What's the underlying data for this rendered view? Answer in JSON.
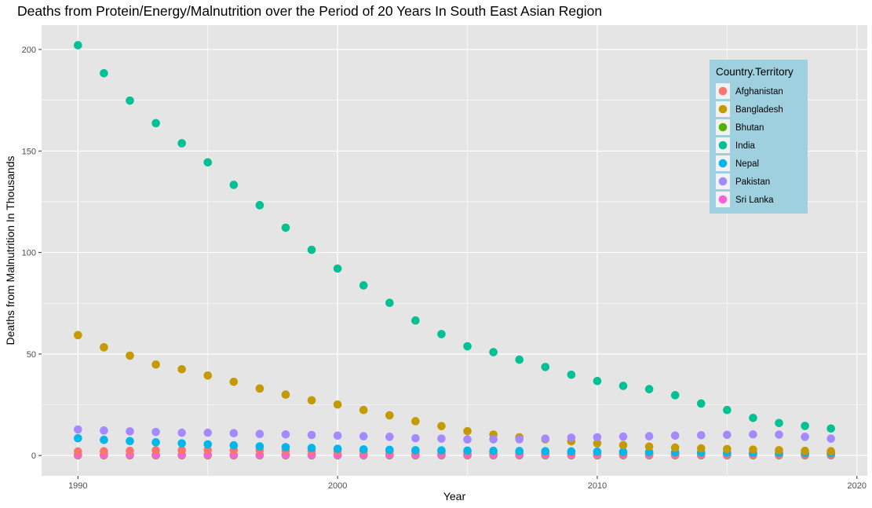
{
  "chart_data": {
    "type": "scatter",
    "title": "Deaths from Protein/Energy/Malnutrition over the Period of 20 Years In South East Asian Region",
    "xlabel": "Year",
    "ylabel": "Deaths from Malnutrition In Thousands",
    "xlim": [
      1988.6,
      2020.4
    ],
    "ylim": [
      -10,
      212
    ],
    "x_ticks": [
      1990,
      2000,
      2010,
      2020
    ],
    "y_ticks": [
      0,
      50,
      100,
      150,
      200
    ],
    "grid": true,
    "legend": {
      "title": "Country.Territory",
      "placement": "top-right"
    },
    "x": [
      1990,
      1991,
      1992,
      1993,
      1994,
      1995,
      1996,
      1997,
      1998,
      1999,
      2000,
      2001,
      2002,
      2003,
      2004,
      2005,
      2006,
      2007,
      2008,
      2009,
      2010,
      2011,
      2012,
      2013,
      2014,
      2015,
      2016,
      2017,
      2018,
      2019
    ],
    "series": [
      {
        "name": "Afghanistan",
        "color": "#F8766D",
        "values": [
          2.0,
          2.1,
          2.3,
          2.5,
          2.6,
          2.7,
          2.6,
          2.5,
          2.4,
          2.3,
          2.2,
          2.1,
          2.0,
          1.9,
          1.8,
          1.7,
          1.6,
          1.5,
          1.4,
          1.3,
          1.2,
          1.1,
          1.0,
          1.0,
          0.9,
          0.9,
          0.8,
          0.8,
          0.7,
          0.7
        ]
      },
      {
        "name": "Bangladesh",
        "color": "#C49A00",
        "values": [
          59.3,
          53.3,
          49.2,
          44.8,
          42.5,
          39.4,
          36.3,
          33.0,
          30.0,
          27.2,
          25.1,
          22.4,
          19.8,
          16.9,
          14.5,
          12.0,
          10.3,
          9.0,
          8.0,
          7.0,
          6.0,
          5.1,
          4.4,
          3.9,
          3.5,
          3.2,
          2.9,
          2.6,
          2.3,
          2.1
        ]
      },
      {
        "name": "Bhutan",
        "color": "#53B400",
        "values": [
          0.1,
          0.1,
          0.1,
          0.1,
          0.1,
          0.1,
          0.1,
          0.1,
          0.1,
          0.1,
          0.1,
          0.1,
          0.1,
          0.1,
          0.1,
          0.1,
          0.1,
          0.1,
          0.1,
          0.1,
          0.1,
          0.1,
          0.1,
          0.1,
          0.1,
          0.1,
          0.1,
          0.1,
          0.1,
          0.1
        ]
      },
      {
        "name": "India",
        "color": "#00C094",
        "values": [
          202.1,
          188.3,
          174.8,
          163.7,
          153.8,
          144.4,
          133.3,
          123.3,
          112.2,
          101.3,
          92.1,
          83.8,
          75.2,
          66.5,
          59.8,
          53.8,
          50.9,
          47.2,
          43.6,
          39.8,
          36.7,
          34.3,
          32.7,
          29.7,
          25.6,
          22.4,
          18.5,
          16.0,
          14.6,
          13.3
        ]
      },
      {
        "name": "Nepal",
        "color": "#00B6EB",
        "values": [
          8.5,
          7.7,
          7.1,
          6.5,
          6.0,
          5.5,
          5.0,
          4.5,
          4.1,
          3.7,
          3.3,
          3.0,
          2.8,
          2.6,
          2.5,
          2.4,
          2.3,
          2.2,
          2.1,
          2.0,
          1.9,
          1.8,
          1.7,
          1.6,
          1.5,
          1.4,
          1.3,
          1.3,
          1.2,
          1.2
        ]
      },
      {
        "name": "Pakistan",
        "color": "#A58AFF",
        "values": [
          12.8,
          12.3,
          11.9,
          11.6,
          11.2,
          11.2,
          11.0,
          10.6,
          10.4,
          10.1,
          9.8,
          9.5,
          9.2,
          8.5,
          8.3,
          7.9,
          8.0,
          8.0,
          8.3,
          8.8,
          9.0,
          9.3,
          9.5,
          9.8,
          10.0,
          10.2,
          10.4,
          10.3,
          9.2,
          8.3
        ]
      },
      {
        "name": "Sri Lanka",
        "color": "#FB61D7",
        "values": [
          0.3,
          0.3,
          0.3,
          0.3,
          0.3,
          0.3,
          0.3,
          0.3,
          0.3,
          0.3,
          0.3,
          0.3,
          0.3,
          0.3,
          0.3,
          0.3,
          0.3,
          0.3,
          0.3,
          0.3,
          0.3,
          0.3,
          0.3,
          0.3,
          0.3,
          0.3,
          0.3,
          0.3,
          0.3,
          0.3
        ]
      }
    ]
  },
  "colors": {
    "panel_background": "#E5E5E5",
    "grid": "#FFFFFF",
    "legend_background": "#9FD0E0"
  }
}
